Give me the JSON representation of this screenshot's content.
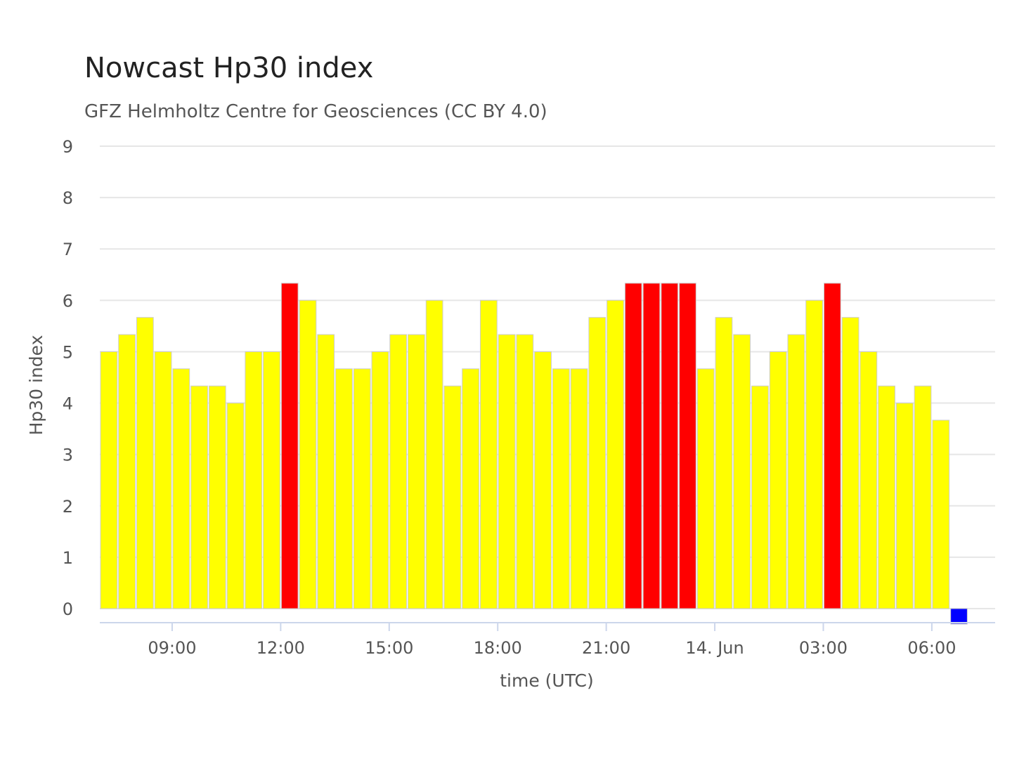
{
  "chart_data": {
    "type": "bar",
    "title": "Nowcast Hp30 index",
    "subtitle": "GFZ Helmholtz Centre for Geosciences (CC BY 4.0)",
    "xlabel": "time (UTC)",
    "ylabel": "Hp30 index",
    "ylim": [
      0,
      9
    ],
    "yticks": [
      "0",
      "1",
      "2",
      "3",
      "4",
      "5",
      "6",
      "7",
      "8",
      "9"
    ],
    "xticks": [
      "09:00",
      "12:00",
      "15:00",
      "18:00",
      "21:00",
      "14. Jun",
      "03:00",
      "06:00"
    ],
    "xtick_values": [
      9,
      12,
      15,
      18,
      21,
      24,
      27,
      30
    ],
    "xlim": [
      7.0,
      31.75
    ],
    "bar_start": 7.25,
    "bar_interval": 0.5,
    "values": [
      5,
      5.333,
      5.667,
      5,
      4.667,
      4.333,
      4.333,
      4,
      5,
      5,
      6.333,
      6,
      5.333,
      4.667,
      4.667,
      5,
      5.333,
      5.333,
      6,
      4.333,
      4.667,
      6,
      5.333,
      5.333,
      5,
      4.667,
      4.667,
      5.667,
      6,
      6.333,
      6.333,
      6.333,
      6.333,
      4.667,
      5.667,
      5.333,
      4.333,
      5,
      5.333,
      6,
      6.333,
      5.667,
      5,
      4.333,
      4,
      4.333,
      3.667,
      0
    ],
    "colors": {
      "normal": "#ffff00",
      "storm": "#ff0000",
      "current": "#0000ff",
      "grid": "#e6e6e6",
      "axis": "#ccd6eb",
      "bar_border": "#cccccc"
    },
    "storm_threshold": 6.333,
    "current_marker_value": 0.3,
    "grid": true,
    "legend": "none"
  }
}
